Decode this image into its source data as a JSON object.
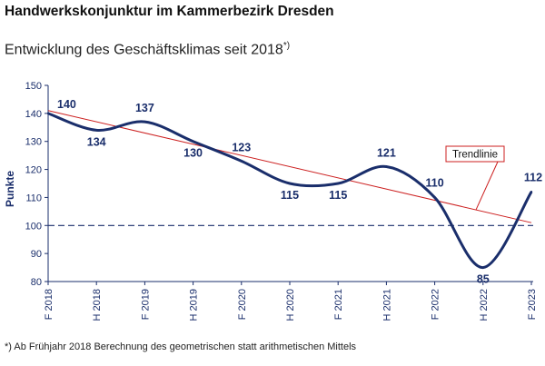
{
  "title": "Handwerkskonjunktur im Kammerbezirk Dresden",
  "subtitle": "Entwicklung des Geschäftsklimas seit 2018",
  "subtitle_marker": "*)",
  "footnote": "*) Ab Frühjahr 2018 Berechnung des geometrischen statt arithmetischen Mittels",
  "chart_data": {
    "type": "line",
    "categories": [
      "F 2018",
      "H 2018",
      "F 2019",
      "H 2019",
      "F 2020",
      "H 2020",
      "F 2021",
      "H 2021",
      "F 2022",
      "H 2022",
      "F 2023"
    ],
    "series": [
      {
        "name": "Geschäftsklima",
        "values": [
          140,
          134,
          137,
          130,
          123,
          115,
          115,
          121,
          110,
          85,
          112
        ],
        "color": "#1a2e6b"
      }
    ],
    "trendline": {
      "name": "Trendlinie",
      "start": 141,
      "end": 101,
      "color": "#cc1f1f"
    },
    "reference_line": {
      "value": 100,
      "style": "dashed",
      "color": "#1a2e6b"
    },
    "ylabel": "Punkte",
    "xlabel": "",
    "ylim": [
      80,
      150
    ],
    "yticks": [
      80,
      90,
      100,
      110,
      120,
      130,
      140,
      150
    ]
  }
}
